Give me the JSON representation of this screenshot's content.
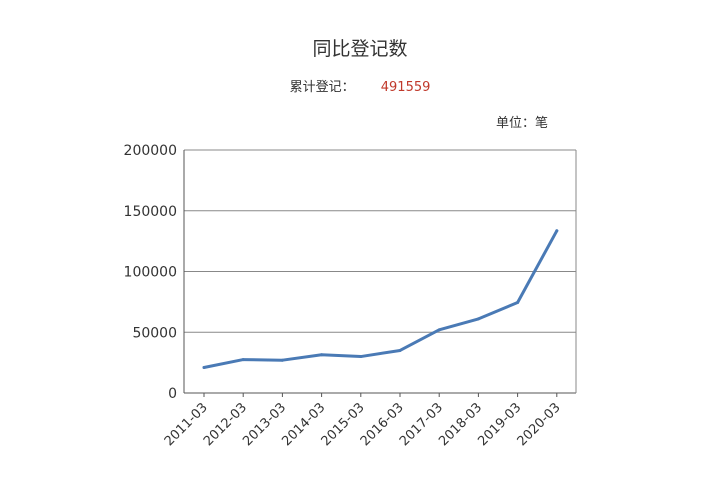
{
  "chart_data": {
    "type": "line",
    "title": "同比登记数",
    "summary": {
      "label": "累计登记：",
      "value": "491559"
    },
    "unit_label": "单位：笔",
    "categories": [
      "2011-03",
      "2012-03",
      "2013-03",
      "2014-03",
      "2015-03",
      "2016-03",
      "2017-03",
      "2018-03",
      "2019-03",
      "2020-03"
    ],
    "series": [
      {
        "values": [
          21000,
          27500,
          27000,
          31500,
          30000,
          35000,
          52000,
          61000,
          74500,
          133500
        ],
        "color": "#4a7ab5"
      }
    ],
    "ylim": [
      0,
      200000
    ],
    "yticks": [
      0,
      50000,
      100000,
      150000,
      200000
    ],
    "grid": true
  }
}
